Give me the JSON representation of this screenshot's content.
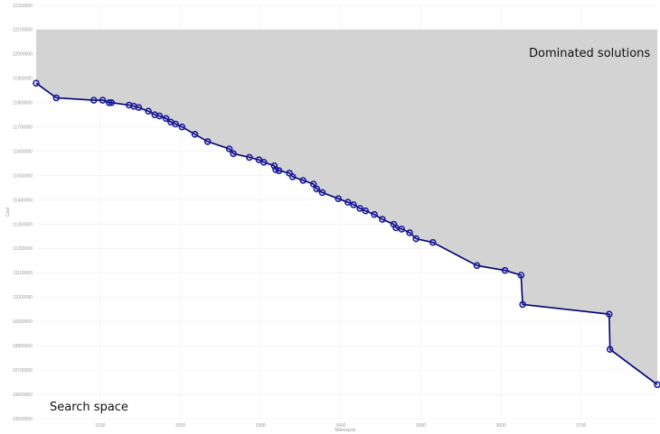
{
  "chart_data": {
    "type": "area",
    "title": "",
    "xlabel": "Makespan",
    "ylabel": "Cost",
    "xlim": [
      3020,
      3795
    ],
    "ylim": [
      10500000,
      12200000
    ],
    "x_ticks": [
      "3100",
      "3200",
      "3300",
      "3400",
      "3500",
      "3600",
      "3700"
    ],
    "y_ticks": [
      "10500000",
      "10600000",
      "10700000",
      "10800000",
      "10900000",
      "11000000",
      "11100000",
      "11200000",
      "11300000",
      "11400000",
      "11500000",
      "11600000",
      "11700000",
      "11800000",
      "11900000",
      "12000000",
      "12100000",
      "12200000"
    ],
    "grid": true,
    "annotations": {
      "dominated": "Dominated solutions",
      "search": "Search space"
    },
    "colors": {
      "line": "#00007a",
      "marker": "#1a1a9e",
      "dominated_fill": "#d3d3d3",
      "grid": "#eeeeee",
      "tick": "#9a9a9a"
    },
    "series": [
      {
        "x": [
          3020,
          3045,
          3092,
          3103,
          3111,
          3114,
          3136,
          3142,
          3148,
          3160,
          3168,
          3174,
          3182,
          3188,
          3194,
          3202,
          3218,
          3234,
          3261,
          3266,
          3286,
          3298,
          3304,
          3317,
          3319,
          3323,
          3336,
          3340,
          3353,
          3366,
          3370,
          3377,
          3397,
          3409,
          3416,
          3424,
          3431,
          3442,
          3452,
          3466,
          3469,
          3476,
          3486,
          3494,
          3515,
          3570,
          3605,
          3625,
          3627,
          3735,
          3736,
          3795
        ],
        "y": [
          11880000,
          11820000,
          11810000,
          11810000,
          11800000,
          11800000,
          11790000,
          11785000,
          11780000,
          11765000,
          11750000,
          11745000,
          11735000,
          11720000,
          11712000,
          11700000,
          11670000,
          11640000,
          11610000,
          11590000,
          11575000,
          11565000,
          11555000,
          11540000,
          11525000,
          11520000,
          11510000,
          11495000,
          11480000,
          11465000,
          11445000,
          11430000,
          11405000,
          11390000,
          11380000,
          11365000,
          11355000,
          11340000,
          11320000,
          11300000,
          11285000,
          11280000,
          11265000,
          11240000,
          11225000,
          11130000,
          11110000,
          11090000,
          10970000,
          10930000,
          10785000,
          10640000
        ]
      }
    ]
  }
}
